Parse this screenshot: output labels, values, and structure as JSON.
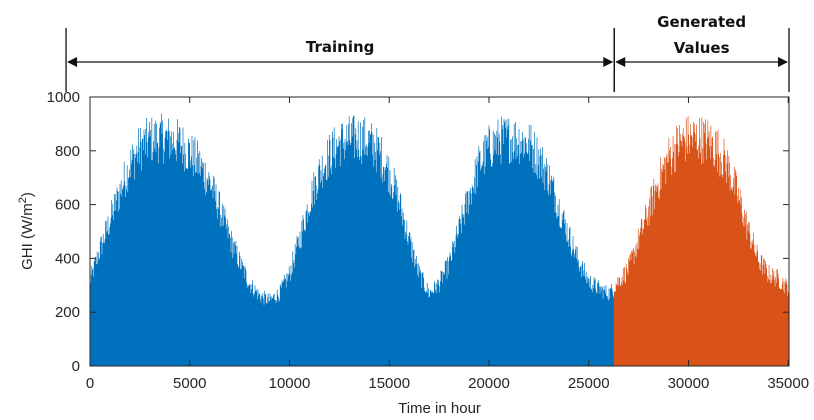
{
  "chart_data": {
    "type": "area",
    "xlabel": "Time in hour",
    "ylabel": {
      "prefix": "GHI (W/m",
      "sup": "2",
      "suffix": ")"
    },
    "xlim": [
      0,
      35040
    ],
    "ylim": [
      0,
      1000
    ],
    "xticks": [
      "0",
      "5000",
      "10000",
      "15000",
      "20000",
      "25000",
      "30000",
      "35000"
    ],
    "xtick_values": [
      0,
      5000,
      10000,
      15000,
      20000,
      25000,
      30000,
      35000
    ],
    "yticks": [
      "0",
      "200",
      "400",
      "600",
      "800",
      "1000"
    ],
    "ytick_values": [
      0,
      200,
      400,
      600,
      800,
      1000
    ],
    "grid": false,
    "series": [
      {
        "color": "#0072BD",
        "x_range": [
          0,
          26280
        ],
        "envelope": {
          "x": [
            0,
            500,
            1000,
            1500,
            2000,
            2500,
            3000,
            3500,
            4000,
            4500,
            5000,
            5500,
            6000,
            6500,
            7000,
            7500,
            8000,
            8500,
            9000,
            9500,
            10000,
            10500,
            11000,
            11500,
            12000,
            12500,
            13000,
            13500,
            14000,
            14500,
            15000,
            15500,
            16000,
            16500,
            17000,
            17500,
            18000,
            18500,
            19000,
            19500,
            20000,
            20500,
            21000,
            21500,
            22000,
            22500,
            23000,
            23500,
            24000,
            24500,
            25000,
            25500,
            26000,
            26280
          ],
          "y": [
            350,
            480,
            600,
            720,
            830,
            900,
            935,
            940,
            935,
            920,
            880,
            830,
            760,
            650,
            530,
            430,
            340,
            290,
            270,
            300,
            380,
            520,
            680,
            800,
            870,
            920,
            935,
            940,
            925,
            880,
            800,
            680,
            520,
            380,
            300,
            340,
            420,
            560,
            700,
            830,
            900,
            930,
            940,
            935,
            920,
            860,
            780,
            660,
            540,
            430,
            350,
            320,
            300,
            320
          ]
        }
      },
      {
        "color": "#D95319",
        "x_range": [
          26280,
          35040
        ],
        "envelope": {
          "x": [
            26280,
            27000,
            27500,
            28000,
            28500,
            29000,
            29500,
            30000,
            30500,
            31000,
            31500,
            32000,
            32500,
            33000,
            33500,
            34000,
            34500,
            35040
          ],
          "y": [
            330,
            400,
            520,
            640,
            760,
            860,
            920,
            940,
            940,
            930,
            890,
            820,
            700,
            560,
            440,
            380,
            360,
            320
          ]
        }
      }
    ],
    "annotations": [
      {
        "label": "Training",
        "x_range": [
          -1200,
          26280
        ]
      },
      {
        "label_lines": [
          "Generated",
          "Values"
        ],
        "x_range": [
          26280,
          35040
        ]
      }
    ]
  }
}
